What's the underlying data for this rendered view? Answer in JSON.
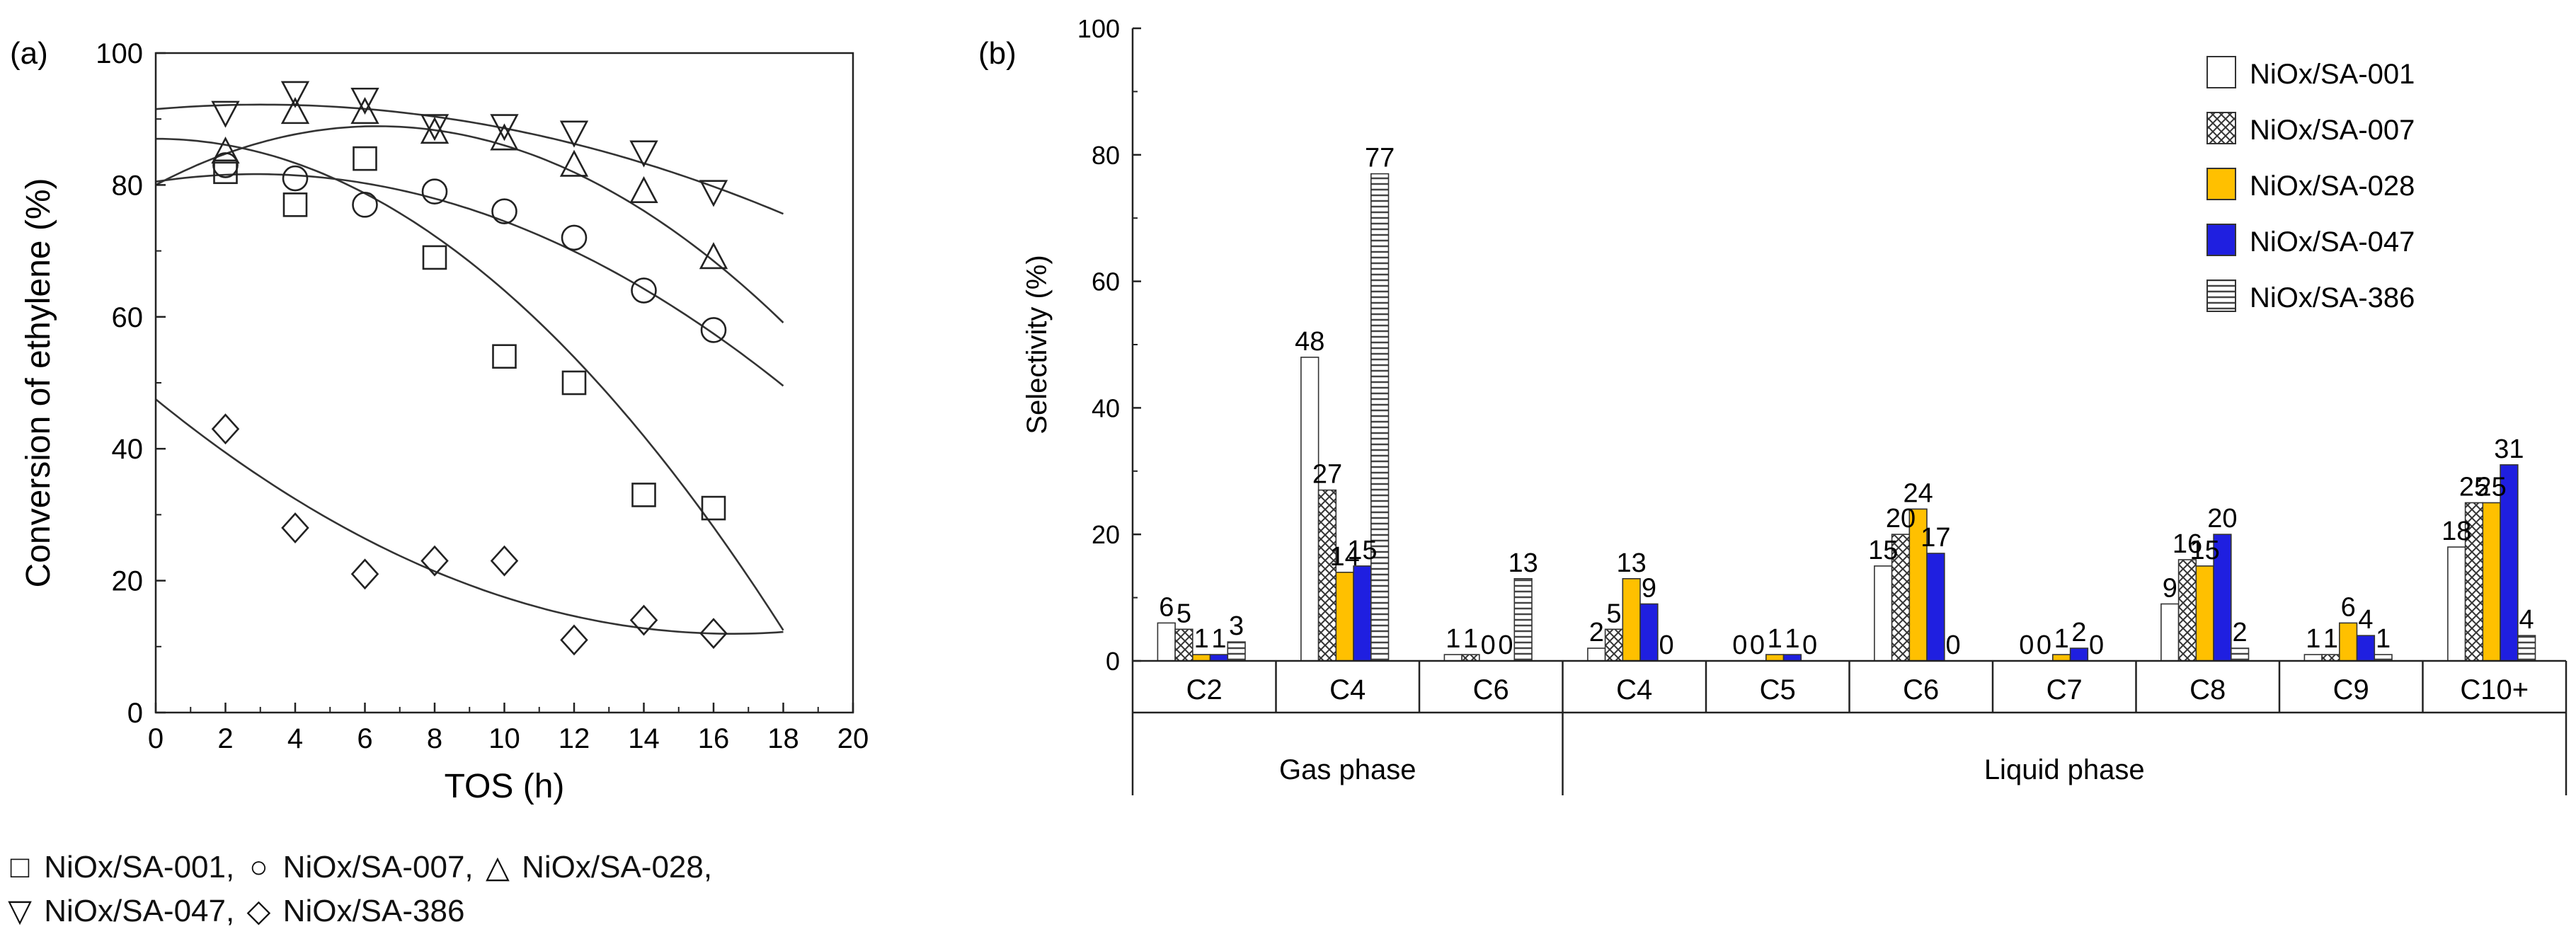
{
  "chart_data": [
    {
      "type": "scatter",
      "panel_label": "(a)",
      "xlabel": "TOS (h)",
      "ylabel": "Conversion of ethylene (%)",
      "xlim": [
        0,
        20
      ],
      "ylim": [
        0,
        100
      ],
      "xticks": [
        "0",
        "2",
        "4",
        "6",
        "8",
        "10",
        "12",
        "14",
        "16",
        "18",
        "20"
      ],
      "yticks": [
        "0",
        "20",
        "40",
        "60",
        "80",
        "100"
      ],
      "series": [
        {
          "name": "NiOx/SA-001",
          "marker": "square",
          "x": [
            2,
            4,
            6,
            8,
            10,
            12,
            14,
            16
          ],
          "y": [
            82,
            77,
            84,
            69,
            54,
            50,
            33,
            31
          ],
          "fit": [
            87,
            0,
            -0.23
          ]
        },
        {
          "name": "NiOx/SA-007",
          "marker": "circle",
          "x": [
            2,
            4,
            6,
            8,
            10,
            12,
            14,
            16
          ],
          "y": [
            83,
            81,
            77,
            79,
            76,
            72,
            64,
            58
          ],
          "fit": [
            80.5,
            0.8,
            -0.14
          ]
        },
        {
          "name": "NiOx/SA-028",
          "marker": "triangle-up",
          "x": [
            2,
            4,
            6,
            8,
            10,
            12,
            14,
            16
          ],
          "y": [
            85,
            91,
            91,
            88,
            87,
            83,
            79,
            69
          ],
          "fit": [
            80,
            2.8,
            -0.22
          ]
        },
        {
          "name": "NiOx/SA-047",
          "marker": "triangle-down",
          "x": [
            2,
            4,
            6,
            8,
            10,
            12,
            14,
            16
          ],
          "y": [
            91,
            94,
            93,
            89,
            89,
            88,
            85,
            79
          ],
          "fit": [
            91.5,
            0.45,
            -0.074
          ]
        },
        {
          "name": "NiOx/SA-386",
          "marker": "diamond",
          "x": [
            2,
            4,
            6,
            8,
            10,
            12,
            14,
            16
          ],
          "y": [
            43,
            28,
            21,
            23,
            23,
            11,
            14,
            12
          ],
          "fit": [
            47.5,
            -4.3,
            0.13
          ]
        }
      ],
      "legend_lines": [
        [
          {
            "symbol": "□",
            "text": "NiOx/SA-001,"
          },
          {
            "symbol": "○",
            "text": "NiOx/SA-007,"
          },
          {
            "symbol": "△",
            "text": "NiOx/SA-028,"
          }
        ],
        [
          {
            "symbol": "▽",
            "text": "NiOx/SA-047,"
          },
          {
            "symbol": "◇",
            "text": "NiOx/SA-386"
          }
        ]
      ]
    },
    {
      "type": "bar",
      "panel_label": "(b)",
      "ylabel": "Selectivity (%)",
      "ylim": [
        0,
        100
      ],
      "yticks": [
        "0",
        "20",
        "40",
        "60",
        "80",
        "100"
      ],
      "categories": [
        "C2",
        "C4",
        "C6",
        "C4",
        "C5",
        "C6",
        "C7",
        "C8",
        "C9",
        "C10+"
      ],
      "groups": [
        {
          "label": "Gas phase",
          "from": 0,
          "to": 2
        },
        {
          "label": "Liquid phase",
          "from": 3,
          "to": 9
        }
      ],
      "series": [
        {
          "name": "NiOx/SA-001",
          "pattern": "white",
          "color": "#ffffff",
          "values": [
            6,
            48,
            1,
            2,
            0,
            15,
            0,
            9,
            1,
            18
          ]
        },
        {
          "name": "NiOx/SA-007",
          "pattern": "crosshatch",
          "color": "#888888",
          "values": [
            5,
            27,
            1,
            5,
            0,
            20,
            0,
            16,
            1,
            25
          ]
        },
        {
          "name": "NiOx/SA-028",
          "pattern": "solid",
          "color": "#FFC000",
          "values": [
            1,
            14,
            0,
            13,
            1,
            24,
            1,
            15,
            6,
            25
          ]
        },
        {
          "name": "NiOx/SA-047",
          "pattern": "solid",
          "color": "#1F1FE0",
          "values": [
            1,
            15,
            0,
            9,
            1,
            17,
            2,
            20,
            4,
            31
          ]
        },
        {
          "name": "NiOx/SA-386",
          "pattern": "horizontal-lines",
          "color": "#555555",
          "values": [
            3,
            77,
            13,
            0,
            0,
            0,
            0,
            2,
            1,
            4
          ]
        }
      ],
      "legend_position": "top-right"
    }
  ]
}
